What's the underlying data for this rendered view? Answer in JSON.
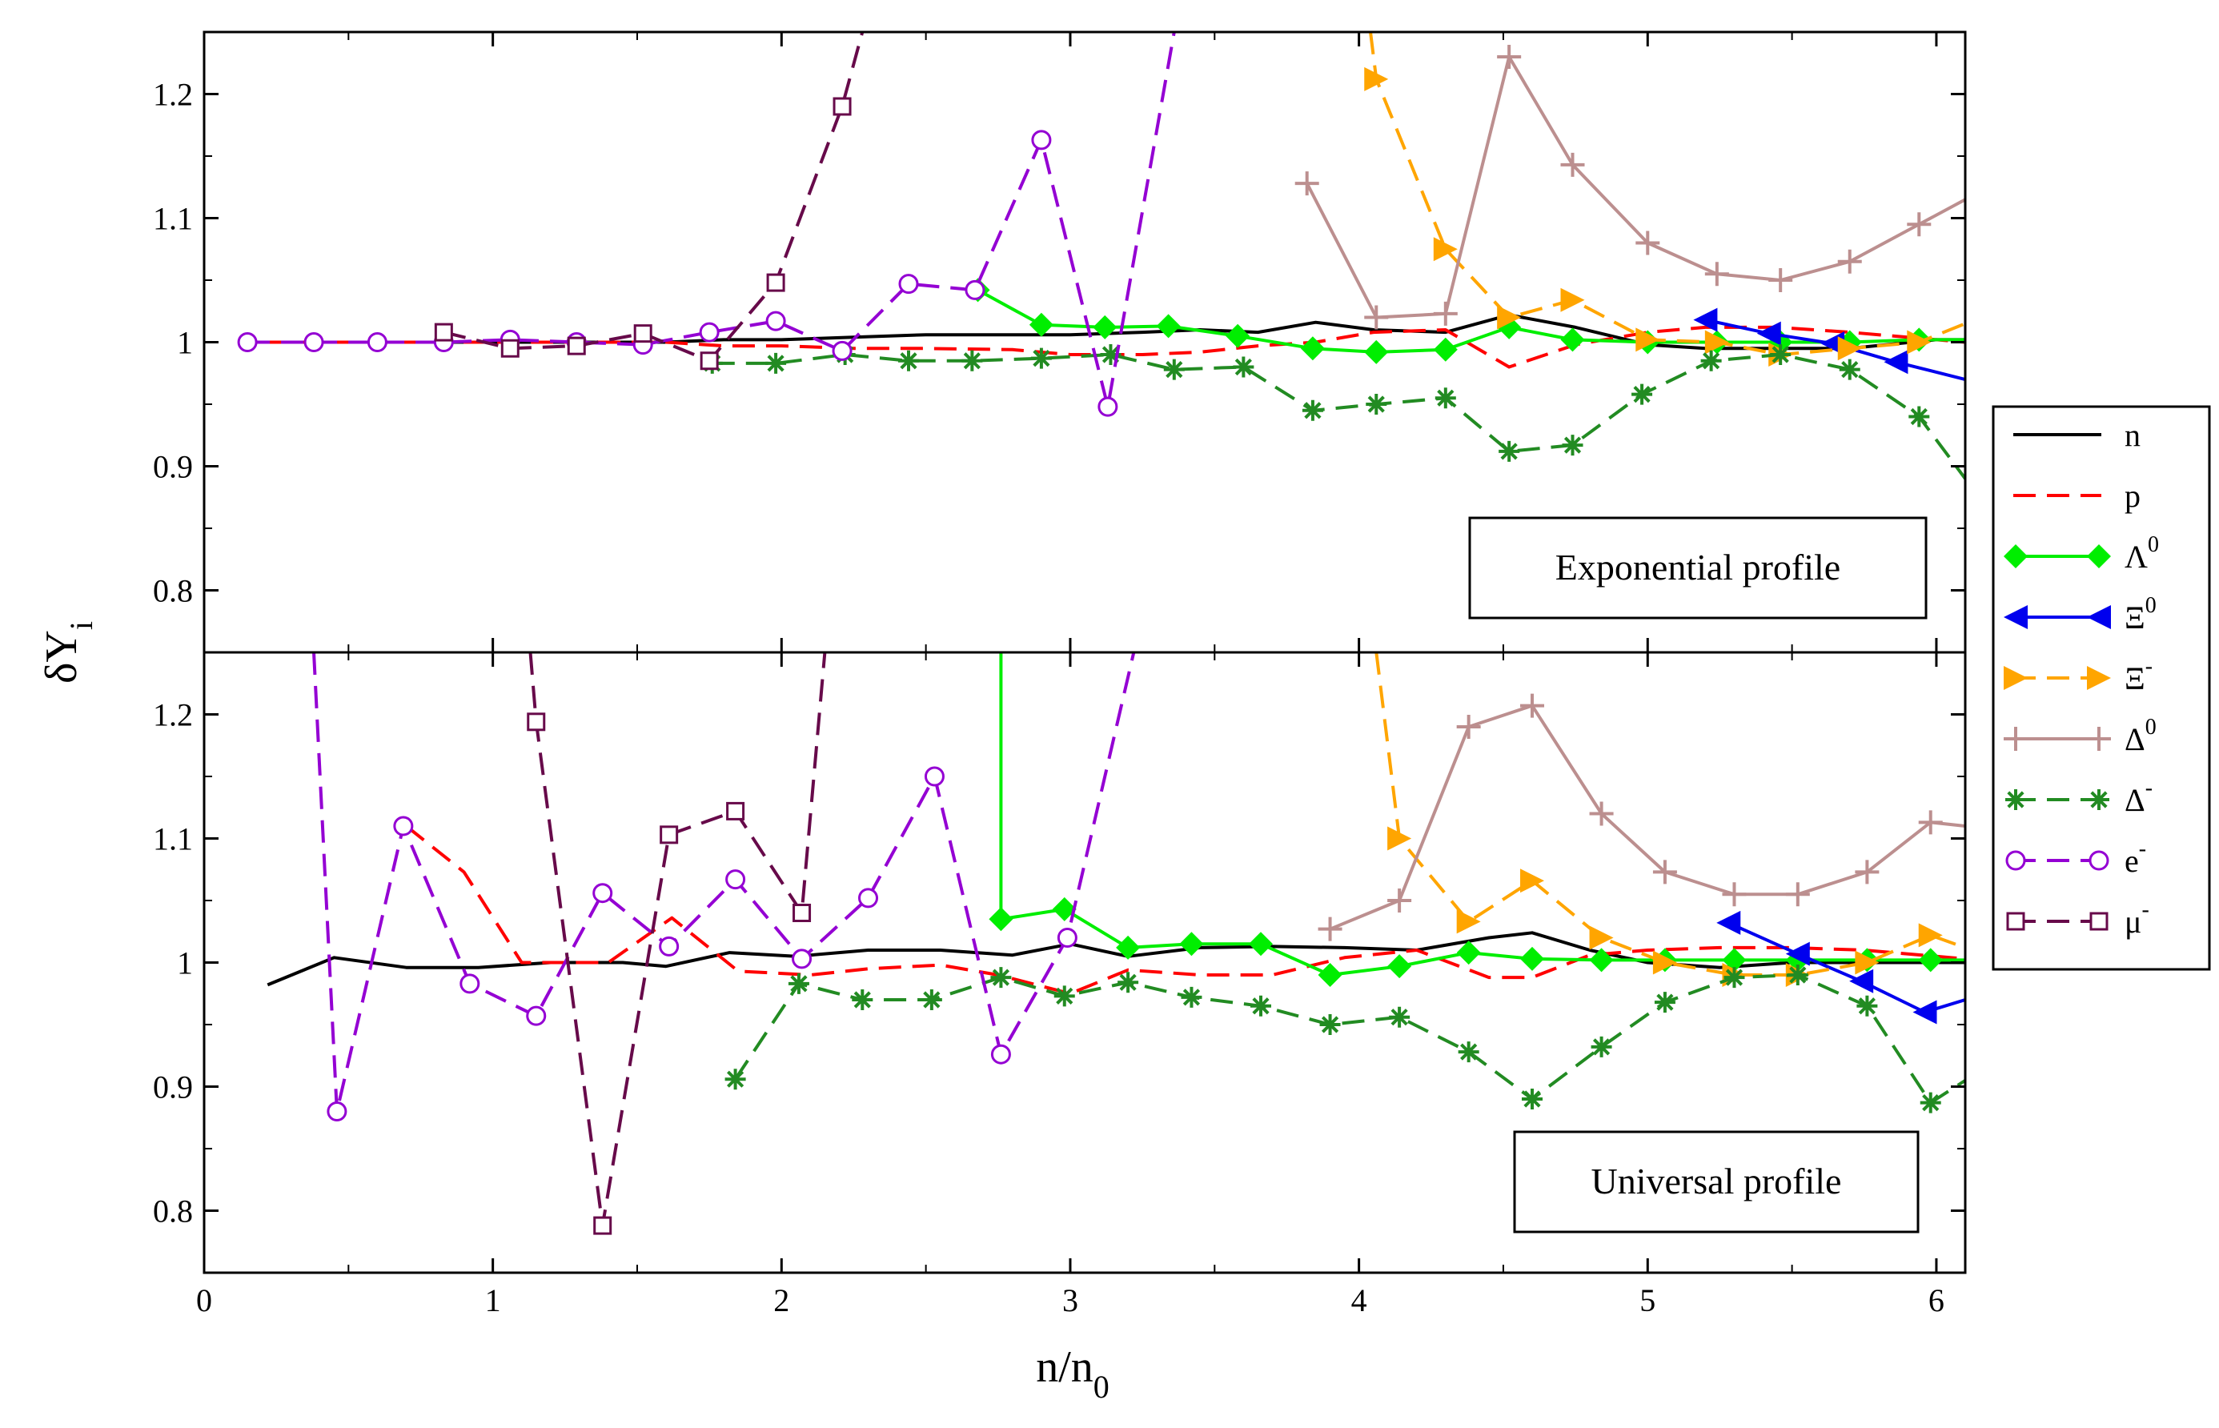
{
  "chart_data": {
    "type": "line",
    "xlabel": "n/n",
    "xlabel_sub": "0",
    "ylabel": "δY",
    "ylabel_sub": "i",
    "xlim": [
      0,
      6.1
    ],
    "ylim": [
      0.75,
      1.25
    ],
    "xticks": [
      "0",
      "1",
      "2",
      "3",
      "4",
      "5",
      "6"
    ],
    "yticks": [
      "0.8",
      "0.9",
      "1",
      "1.1",
      "1.2"
    ],
    "legend_position": "right",
    "legend": [
      {
        "key": "n",
        "label": "n",
        "sup": ""
      },
      {
        "key": "p",
        "label": "p",
        "sup": ""
      },
      {
        "key": "L0",
        "label": "Λ",
        "sup": "0"
      },
      {
        "key": "X0",
        "label": "Ξ",
        "sup": "0"
      },
      {
        "key": "Xm",
        "label": "Ξ",
        "sup": "-"
      },
      {
        "key": "D0",
        "label": "Δ",
        "sup": "0"
      },
      {
        "key": "Dm",
        "label": "Δ",
        "sup": "-"
      },
      {
        "key": "e",
        "label": "e",
        "sup": "-"
      },
      {
        "key": "mu",
        "label": "μ",
        "sup": "-"
      }
    ],
    "styles": {
      "n": {
        "color": "#000000",
        "dash": "",
        "marker": "none"
      },
      "p": {
        "color": "#ff0000",
        "dash": "28,14",
        "marker": "none"
      },
      "L0": {
        "color": "#00ee00",
        "dash": "",
        "marker": "diamond"
      },
      "X0": {
        "color": "#0000ee",
        "dash": "",
        "marker": "triangle-left"
      },
      "Xm": {
        "color": "#ffa500",
        "dash": "28,14",
        "marker": "triangle-right"
      },
      "D0": {
        "color": "#bc8f8f",
        "dash": "",
        "marker": "plus"
      },
      "Dm": {
        "color": "#228b22",
        "dash": "28,14",
        "marker": "star"
      },
      "e": {
        "color": "#9400d3",
        "dash": "28,14",
        "marker": "circle"
      },
      "mu": {
        "color": "#670a4a",
        "dash": "28,14",
        "marker": "square"
      }
    },
    "panels": [
      {
        "name": "exponential",
        "title": "Exponential profile",
        "series": [
          {
            "key": "n",
            "x": [
              0.2,
              0.45,
              0.7,
              0.92,
              1.15,
              1.38,
              1.6,
              1.8,
              2.0,
              2.25,
              2.5,
              2.8,
              3.0,
              3.25,
              3.45,
              3.65,
              3.85,
              4.05,
              4.3,
              4.52,
              4.75,
              5.0,
              5.2,
              5.45,
              5.7,
              6.0,
              6.1
            ],
            "y": [
              1.0,
              1.0,
              1.0,
              1.0,
              1.0,
              1.0,
              1.0,
              1.002,
              1.002,
              1.004,
              1.006,
              1.006,
              1.006,
              1.008,
              1.01,
              1.008,
              1.016,
              1.01,
              1.008,
              1.022,
              1.012,
              0.998,
              0.995,
              0.995,
              0.995,
              1.002,
              1.002
            ]
          },
          {
            "key": "p",
            "x": [
              0.2,
              0.45,
              0.7,
              0.92,
              1.15,
              1.38,
              1.6,
              1.8,
              2.0,
              2.25,
              2.5,
              2.8,
              3.0,
              3.25,
              3.45,
              3.65,
              3.85,
              4.05,
              4.3,
              4.52,
              4.75,
              5.0,
              5.2,
              5.45,
              5.7,
              6.0,
              6.1
            ],
            "y": [
              1.0,
              1.0,
              1.0,
              1.0,
              1.0,
              1.0,
              1.0,
              0.997,
              0.997,
              0.995,
              0.995,
              0.994,
              0.99,
              0.99,
              0.992,
              0.997,
              1.0,
              1.008,
              1.01,
              0.98,
              0.998,
              1.008,
              1.012,
              1.012,
              1.008,
              1.002,
              1.0
            ]
          },
          {
            "key": "L0",
            "x": [
              2.68,
              2.9,
              3.12,
              3.34,
              3.58,
              3.84,
              4.06,
              4.3,
              4.52,
              4.74,
              5.0,
              5.24,
              5.46,
              5.7,
              5.94,
              6.1
            ],
            "y": [
              1.042,
              1.014,
              1.012,
              1.013,
              1.005,
              0.995,
              0.992,
              0.994,
              1.012,
              1.002,
              1.0,
              1.0,
              1.0,
              1.0,
              1.002,
              1.002
            ]
          },
          {
            "key": "X0",
            "x": [
              5.2,
              5.42,
              5.64,
              5.86,
              6.1
            ],
            "y": [
              1.018,
              1.007,
              0.999,
              0.984,
              0.97
            ]
          },
          {
            "key": "Xm",
            "x": [
              4.04,
              4.06,
              4.3,
              4.52,
              4.74,
              5.0,
              5.24,
              5.46,
              5.7,
              5.94,
              6.1
            ],
            "y": [
              1.25,
              1.212,
              1.075,
              1.02,
              1.034,
              1.002,
              1.0,
              0.99,
              0.995,
              1.0,
              1.015
            ]
          },
          {
            "key": "D0",
            "x": [
              3.82,
              4.06,
              4.3,
              4.52,
              4.74,
              5.0,
              5.24,
              5.46,
              5.7,
              5.94,
              6.1
            ],
            "y": [
              1.128,
              1.02,
              1.023,
              1.23,
              1.143,
              1.08,
              1.055,
              1.05,
              1.065,
              1.095,
              1.115
            ]
          },
          {
            "key": "Dm",
            "x": [
              1.76,
              1.98,
              2.22,
              2.44,
              2.66,
              2.9,
              3.14,
              3.36,
              3.6,
              3.84,
              4.06,
              4.3,
              4.52,
              4.74,
              4.98,
              5.22,
              5.46,
              5.7,
              5.94,
              6.1
            ],
            "y": [
              0.983,
              0.983,
              0.99,
              0.985,
              0.985,
              0.987,
              0.99,
              0.978,
              0.98,
              0.945,
              0.95,
              0.955,
              0.912,
              0.917,
              0.958,
              0.985,
              0.99,
              0.978,
              0.94,
              0.89
            ]
          },
          {
            "key": "e",
            "x": [
              0.15,
              0.38,
              0.6,
              0.83,
              1.06,
              1.29,
              1.52,
              1.75,
              1.98,
              2.21,
              2.44,
              2.67,
              2.9,
              3.13,
              3.36
            ],
            "y": [
              1.0,
              1.0,
              1.0,
              1.0,
              1.002,
              1.0,
              0.998,
              1.008,
              1.017,
              0.993,
              1.047,
              1.042,
              1.163,
              0.948,
              1.25
            ]
          },
          {
            "key": "mu",
            "x": [
              0.83,
              1.06,
              1.29,
              1.52,
              1.75,
              1.98,
              2.21,
              2.28
            ],
            "y": [
              1.008,
              0.995,
              0.997,
              1.007,
              0.985,
              1.048,
              1.19,
              1.25
            ]
          }
        ]
      },
      {
        "name": "universal",
        "title": "Universal profile",
        "series": [
          {
            "key": "n",
            "x": [
              0.22,
              0.45,
              0.7,
              0.95,
              1.2,
              1.45,
              1.6,
              1.82,
              2.05,
              2.3,
              2.55,
              2.8,
              3.0,
              3.2,
              3.45,
              3.7,
              3.95,
              4.2,
              4.45,
              4.6,
              4.8,
              5.0,
              5.25,
              5.5,
              5.75,
              6.0,
              6.1
            ],
            "y": [
              0.982,
              1.004,
              0.996,
              0.996,
              1.0,
              1.0,
              0.997,
              1.008,
              1.005,
              1.01,
              1.01,
              1.006,
              1.015,
              1.005,
              1.012,
              1.013,
              1.012,
              1.01,
              1.02,
              1.024,
              1.01,
              1.0,
              0.996,
              1.0,
              1.0,
              1.0,
              1.0
            ]
          },
          {
            "key": "p",
            "x": [
              0.7,
              0.9,
              1.1,
              1.4,
              1.62,
              1.85,
              2.1,
              2.3,
              2.55,
              2.75,
              3.0,
              3.2,
              3.45,
              3.7,
              3.95,
              4.2,
              4.45,
              4.6,
              4.8,
              5.0,
              5.25,
              5.5,
              5.75,
              6.0,
              6.1
            ],
            "y": [
              1.11,
              1.073,
              1.0,
              1.0,
              1.036,
              0.993,
              0.99,
              0.995,
              0.998,
              0.99,
              0.975,
              0.994,
              0.99,
              0.99,
              1.004,
              1.01,
              0.988,
              0.988,
              1.006,
              1.01,
              1.012,
              1.012,
              1.01,
              1.005,
              1.003
            ]
          },
          {
            "key": "L0",
            "x": [
              2.76,
              2.76,
              2.98,
              3.2,
              3.42,
              3.66,
              3.9,
              4.14,
              4.38,
              4.6,
              4.84,
              5.06,
              5.3,
              5.52,
              5.76,
              5.98,
              6.1
            ],
            "y": [
              1.25,
              1.035,
              1.043,
              1.012,
              1.015,
              1.015,
              0.99,
              0.997,
              1.008,
              1.003,
              1.002,
              1.002,
              1.002,
              1.002,
              1.002,
              1.002,
              1.002
            ]
          },
          {
            "key": "X0",
            "x": [
              5.28,
              5.52,
              5.74,
              5.96,
              6.1
            ],
            "y": [
              1.032,
              1.007,
              0.985,
              0.96,
              0.97
            ]
          },
          {
            "key": "Xm",
            "x": [
              4.06,
              4.14,
              4.38,
              4.6,
              4.84,
              5.06,
              5.3,
              5.52,
              5.76,
              5.98,
              6.1
            ],
            "y": [
              1.25,
              1.1,
              1.033,
              1.066,
              1.02,
              1.0,
              0.99,
              0.99,
              1.0,
              1.022,
              1.012
            ]
          },
          {
            "key": "D0",
            "x": [
              3.9,
              4.14,
              4.38,
              4.6,
              4.84,
              5.06,
              5.3,
              5.52,
              5.76,
              5.98,
              6.1
            ],
            "y": [
              1.027,
              1.05,
              1.19,
              1.207,
              1.12,
              1.073,
              1.055,
              1.055,
              1.073,
              1.113,
              1.11
            ]
          },
          {
            "key": "Dm",
            "x": [
              1.84,
              2.06,
              2.28,
              2.52,
              2.76,
              2.98,
              3.2,
              3.42,
              3.66,
              3.9,
              4.14,
              4.38,
              4.6,
              4.84,
              5.06,
              5.3,
              5.52,
              5.76,
              5.98,
              6.1
            ],
            "y": [
              0.906,
              0.983,
              0.97,
              0.97,
              0.988,
              0.973,
              0.984,
              0.972,
              0.965,
              0.95,
              0.956,
              0.928,
              0.89,
              0.932,
              0.968,
              0.988,
              0.99,
              0.965,
              0.887,
              0.905
            ]
          },
          {
            "key": "e",
            "x": [
              0.38,
              0.46,
              0.69,
              0.92,
              1.15,
              1.38,
              1.61,
              1.84,
              2.07,
              2.3,
              2.53,
              2.76,
              2.99,
              3.22
            ],
            "y": [
              1.25,
              0.88,
              1.11,
              0.983,
              0.957,
              1.056,
              1.013,
              1.067,
              1.003,
              1.052,
              1.15,
              0.926,
              1.02,
              1.25
            ]
          },
          {
            "key": "mu",
            "x": [
              1.13,
              1.15,
              1.38,
              1.61,
              1.84,
              2.07,
              2.15
            ],
            "y": [
              1.25,
              1.194,
              0.788,
              1.103,
              1.122,
              1.04,
              1.25
            ]
          }
        ]
      }
    ]
  }
}
